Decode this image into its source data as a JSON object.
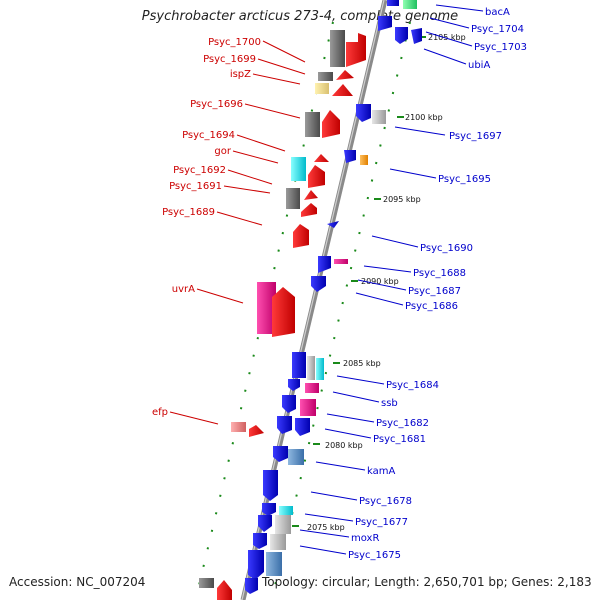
{
  "title": "Psychrobacter arcticus 273-4, complete genome",
  "accession": "Accession: NC_007204",
  "topology": "Topology: circular; Length: 2,650,701 bp; Genes: 2,183",
  "colors": {
    "forward_label": "#cc0000",
    "reverse_label": "#0000cc",
    "backbone": "#888888",
    "tick": "#1a8a1a"
  },
  "ruler_labels": [
    "2105 kbp",
    "2100 kbp",
    "2095 kbp",
    "2090 kbp",
    "2085 kbp",
    "2080 kbp",
    "2075 kbp"
  ],
  "forward_labels": [
    "Psyc_1700",
    "Psyc_1699",
    "ispZ",
    "Psyc_1696",
    "Psyc_1694",
    "gor",
    "Psyc_1692",
    "Psyc_1691",
    "Psyc_1689",
    "uvrA",
    "efp"
  ],
  "reverse_labels": [
    "bacA",
    "Psyc_1704",
    "Psyc_1703",
    "ubiA",
    "Psyc_1697",
    "Psyc_1695",
    "Psyc_1690",
    "Psyc_1688",
    "Psyc_1687",
    "Psyc_1686",
    "Psyc_1684",
    "ssb",
    "Psyc_1682",
    "Psyc_1681",
    "kamA",
    "Psyc_1678",
    "Psyc_1677",
    "moxR",
    "Psyc_1675"
  ]
}
